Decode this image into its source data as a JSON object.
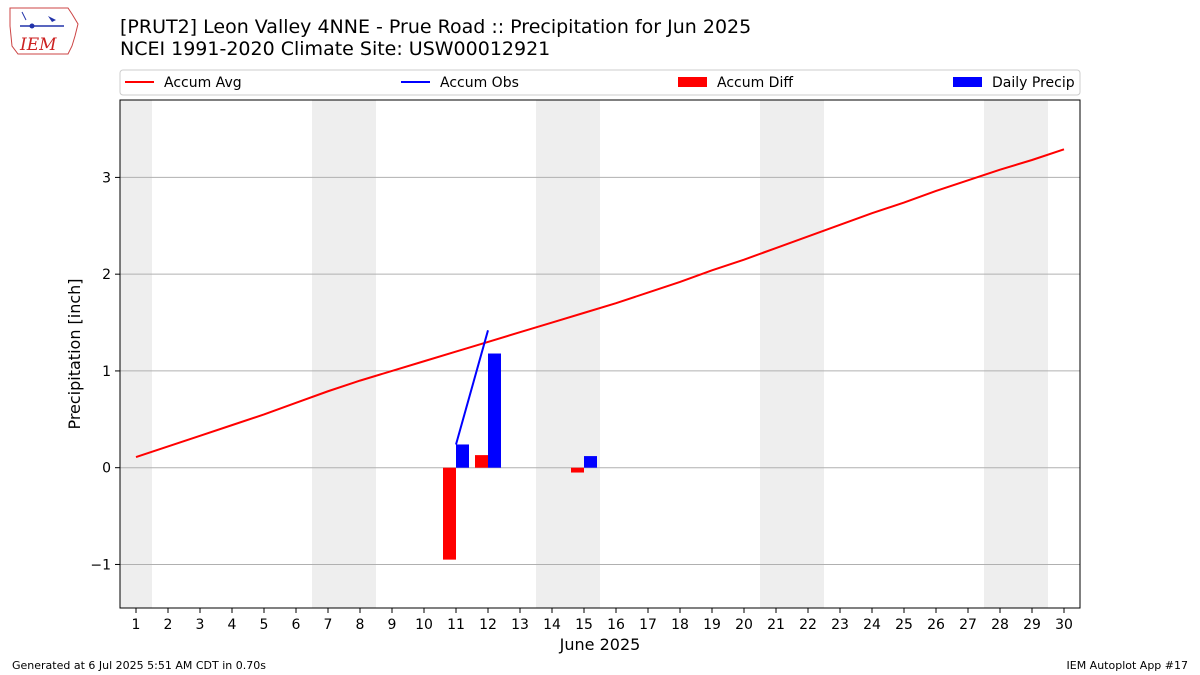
{
  "logo": {
    "text": "IEM"
  },
  "header": {
    "title_line1": "[PRUT2] Leon Valley 4NNE - Prue Road :: Precipitation for Jun 2025",
    "title_line2": "NCEI 1991-2020 Climate Site: USW00012921"
  },
  "footer": {
    "generated": "Generated at 6 Jul 2025 5:51 AM CDT in 0.70s",
    "app": "IEM Autoplot App #17"
  },
  "colors": {
    "avg": "#ff0000",
    "obs": "#0000ff",
    "diff": "#ff0000",
    "daily": "#0000ff",
    "weekend": "#eeeeee",
    "grid": "#b0b0b0"
  },
  "chart_data": {
    "type": "bar",
    "xlabel": "June 2025",
    "ylabel": "Precipitation [inch]",
    "xlim": [
      0.5,
      30.5
    ],
    "ylim": [
      -1.45,
      3.8
    ],
    "yticks": [
      -1,
      0,
      1,
      2,
      3
    ],
    "ytick_labels": [
      "−1",
      "0",
      "1",
      "2",
      "3"
    ],
    "days": [
      1,
      2,
      3,
      4,
      5,
      6,
      7,
      8,
      9,
      10,
      11,
      12,
      13,
      14,
      15,
      16,
      17,
      18,
      19,
      20,
      21,
      22,
      23,
      24,
      25,
      26,
      27,
      28,
      29,
      30
    ],
    "shaded_days": [
      1,
      7,
      8,
      14,
      15,
      21,
      22,
      28,
      29
    ],
    "grid": true,
    "legend_position": "top",
    "legend": [
      {
        "label": "Accum Avg",
        "kind": "line",
        "color": "#ff0000"
      },
      {
        "label": "Accum Obs",
        "kind": "line",
        "color": "#0000ff"
      },
      {
        "label": "Accum Diff",
        "kind": "bar",
        "color": "#ff0000"
      },
      {
        "label": "Daily Precip",
        "kind": "bar",
        "color": "#0000ff"
      }
    ],
    "series": [
      {
        "name": "Accum Avg",
        "type": "line",
        "x": [
          1,
          2,
          3,
          4,
          5,
          6,
          7,
          8,
          9,
          10,
          11,
          12,
          13,
          14,
          15,
          16,
          17,
          18,
          19,
          20,
          21,
          22,
          23,
          24,
          25,
          26,
          27,
          28,
          29,
          30
        ],
        "values": [
          0.11,
          0.22,
          0.33,
          0.44,
          0.55,
          0.67,
          0.79,
          0.9,
          1.0,
          1.1,
          1.2,
          1.3,
          1.4,
          1.5,
          1.6,
          1.7,
          1.81,
          1.92,
          2.04,
          2.15,
          2.27,
          2.39,
          2.51,
          2.63,
          2.74,
          2.86,
          2.97,
          3.08,
          3.18,
          3.29
        ]
      },
      {
        "name": "Accum Obs",
        "type": "line",
        "x": [
          11,
          12
        ],
        "values": [
          0.24,
          1.42
        ]
      },
      {
        "name": "Accum Diff",
        "type": "bar",
        "x": [
          11,
          12,
          15
        ],
        "values": [
          -0.95,
          0.13,
          -0.05
        ]
      },
      {
        "name": "Daily Precip",
        "type": "bar",
        "x": [
          11,
          12,
          15
        ],
        "values": [
          0.24,
          1.18,
          0.12
        ]
      }
    ]
  }
}
